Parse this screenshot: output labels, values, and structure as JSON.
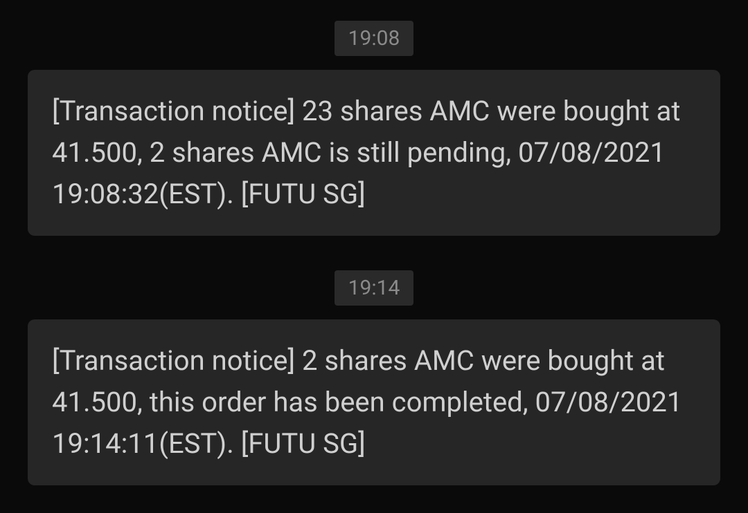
{
  "colors": {
    "background": "#0a0a0a",
    "bubble_background": "#262626",
    "timestamp_background": "#2a2a2a",
    "timestamp_text": "#8a8a8a",
    "message_text": "#d0d0d0"
  },
  "typography": {
    "timestamp_fontsize": 30,
    "message_fontsize": 40,
    "message_lineheight": 1.5
  },
  "messages": [
    {
      "timestamp": "19:08",
      "text": "[Transaction notice] 23 shares AMC were bought at 41.500, 2 shares AMC is still pending, 07/08/2021 19:08:32(EST).  [FUTU SG]"
    },
    {
      "timestamp": "19:14",
      "text": "[Transaction notice] 2 shares AMC were bought at 41.500, this order has been completed, 07/08/2021 19:14:11(EST).  [FUTU SG]"
    }
  ]
}
